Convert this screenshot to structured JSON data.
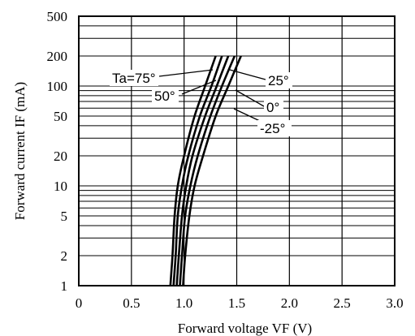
{
  "chart_data": {
    "type": "line",
    "xlabel": "Forward voltage VF (V)",
    "ylabel": "Forward current IF (mA)",
    "xlim": [
      0,
      3.0
    ],
    "ylim": [
      1,
      500
    ],
    "yscale": "log",
    "grid": true,
    "x_ticks": [
      "0",
      "0.5",
      "1.0",
      "1.5",
      "2.0",
      "2.5",
      "3.0"
    ],
    "y_ticks": [
      "1",
      "2",
      "5",
      "10",
      "20",
      "50",
      "100",
      "200",
      "500"
    ],
    "series": [
      {
        "name": "Ta=75°",
        "points": [
          [
            0.87,
            1
          ],
          [
            0.89,
            2
          ],
          [
            0.91,
            5
          ],
          [
            0.94,
            10
          ],
          [
            1.0,
            20
          ],
          [
            1.1,
            50
          ],
          [
            1.2,
            100
          ],
          [
            1.3,
            200
          ]
        ]
      },
      {
        "name": "50°",
        "points": [
          [
            0.9,
            1
          ],
          [
            0.92,
            2
          ],
          [
            0.94,
            5
          ],
          [
            0.98,
            10
          ],
          [
            1.04,
            20
          ],
          [
            1.15,
            50
          ],
          [
            1.26,
            100
          ],
          [
            1.36,
            200
          ]
        ]
      },
      {
        "name": "25°",
        "points": [
          [
            0.93,
            1
          ],
          [
            0.95,
            2
          ],
          [
            0.98,
            5
          ],
          [
            1.02,
            10
          ],
          [
            1.08,
            20
          ],
          [
            1.2,
            50
          ],
          [
            1.31,
            100
          ],
          [
            1.42,
            200
          ]
        ]
      },
      {
        "name": "0°",
        "points": [
          [
            0.96,
            1
          ],
          [
            0.98,
            2
          ],
          [
            1.01,
            5
          ],
          [
            1.06,
            10
          ],
          [
            1.13,
            20
          ],
          [
            1.25,
            50
          ],
          [
            1.36,
            100
          ],
          [
            1.48,
            200
          ]
        ]
      },
      {
        "name": "-25°",
        "points": [
          [
            0.99,
            1
          ],
          [
            1.01,
            2
          ],
          [
            1.05,
            5
          ],
          [
            1.1,
            10
          ],
          [
            1.18,
            20
          ],
          [
            1.3,
            50
          ],
          [
            1.42,
            100
          ],
          [
            1.54,
            200
          ]
        ]
      }
    ],
    "annotations": [
      "Ta=75°",
      "50°",
      "25°",
      "0°",
      "-25°"
    ]
  }
}
